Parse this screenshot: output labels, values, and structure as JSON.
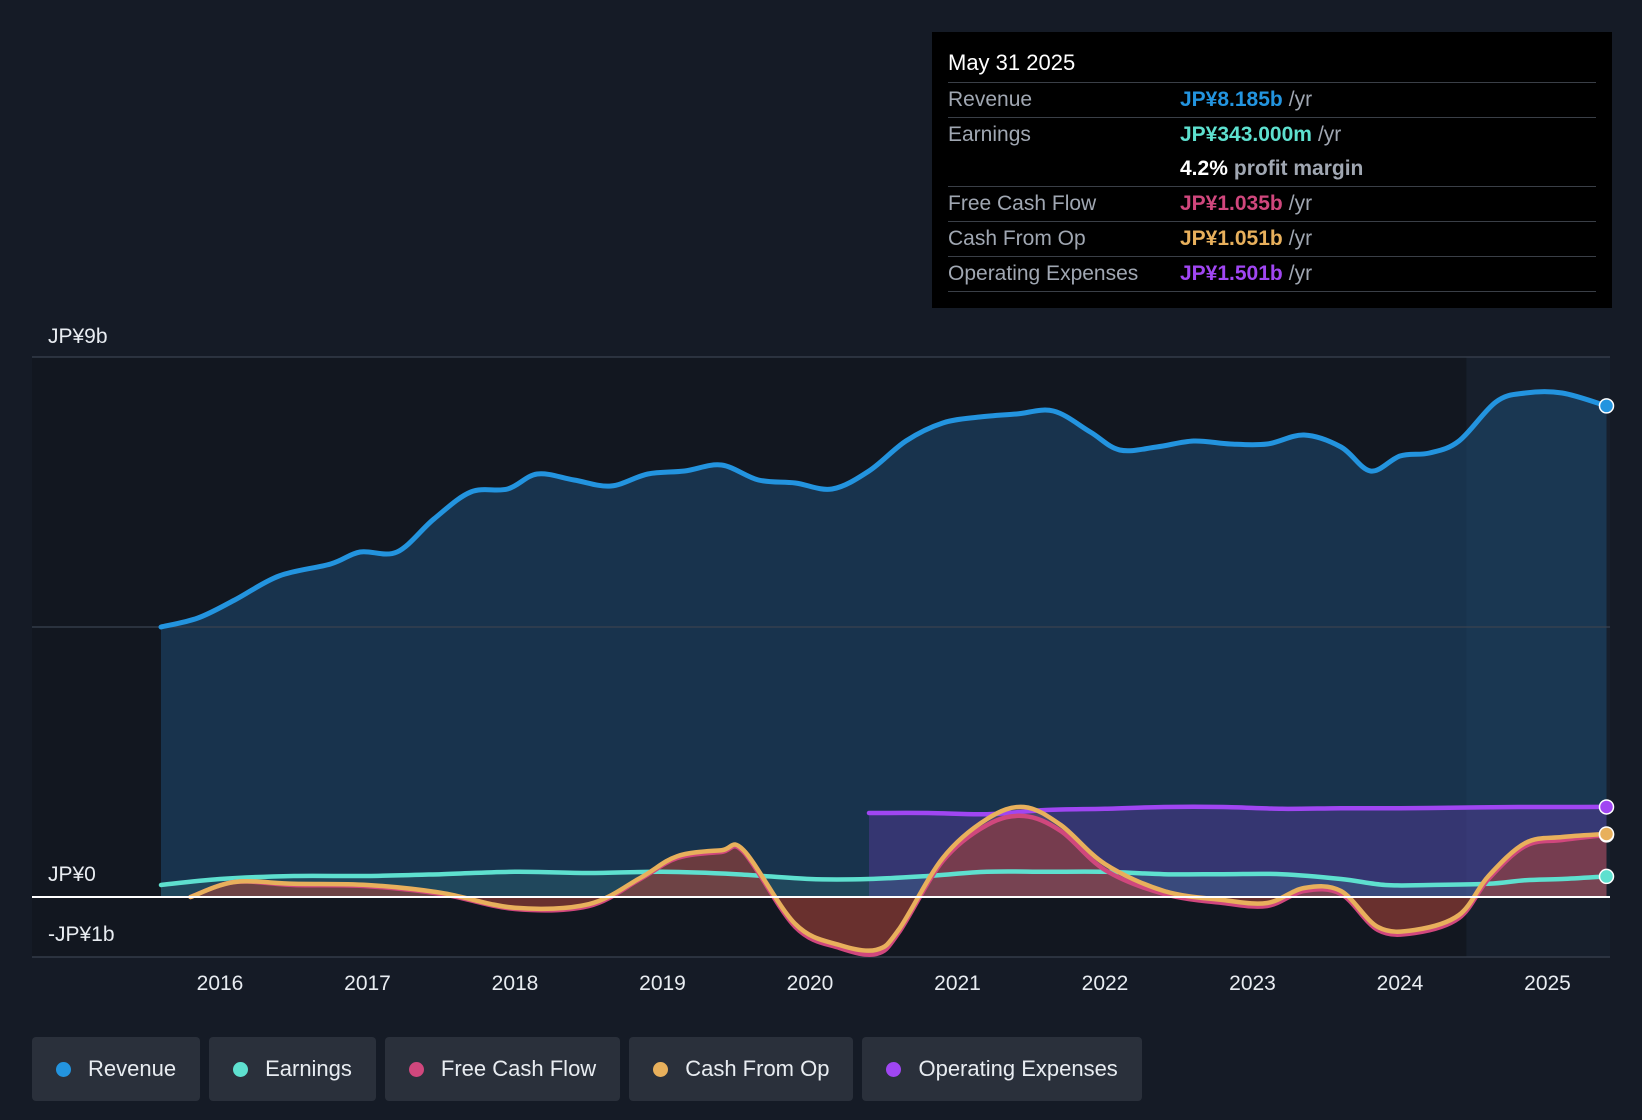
{
  "tooltip": {
    "date": "May 31 2025",
    "rows": {
      "revenue": {
        "label": "Revenue",
        "value": "JP¥8.185b",
        "unit": "/yr"
      },
      "earnings": {
        "label": "Earnings",
        "value": "JP¥343.000m",
        "unit": "/yr"
      },
      "margin": {
        "value": "4.2%",
        "text": "profit margin"
      },
      "fcf": {
        "label": "Free Cash Flow",
        "value": "JP¥1.035b",
        "unit": "/yr"
      },
      "cfo": {
        "label": "Cash From Op",
        "value": "JP¥1.051b",
        "unit": "/yr"
      },
      "opex": {
        "label": "Operating Expenses",
        "value": "JP¥1.501b",
        "unit": "/yr"
      }
    }
  },
  "legend": {
    "revenue": "Revenue",
    "earnings": "Earnings",
    "fcf": "Free Cash Flow",
    "cfo": "Cash From Op",
    "opex": "Operating Expenses"
  },
  "colors": {
    "revenue": "#2394df",
    "earnings": "#5ee0cf",
    "fcf": "#d0477d",
    "cfo": "#e8b05c",
    "opex": "#a046f2"
  },
  "chart_data": {
    "type": "line",
    "title": "",
    "xlabel": "",
    "ylabel": "",
    "ylim": [
      -1.0,
      9.0
    ],
    "y_ticks": [
      {
        "value": 9,
        "label": "JP¥9b"
      },
      {
        "value": 0,
        "label": "JP¥0"
      },
      {
        "value": -1,
        "label": "-JP¥1b"
      }
    ],
    "x_ticks": [
      2016,
      2017,
      2018,
      2019,
      2020,
      2021,
      2022,
      2023,
      2024,
      2025
    ],
    "x_range": [
      2015.0,
      2025.45
    ],
    "forecast_start": 2024.45,
    "series": [
      {
        "key": "revenue",
        "name": "Revenue",
        "x": [
          2015.6,
          2015.85,
          2016.1,
          2016.4,
          2016.75,
          2016.95,
          2017.2,
          2017.45,
          2017.7,
          2017.95,
          2018.15,
          2018.4,
          2018.65,
          2018.9,
          2019.15,
          2019.4,
          2019.65,
          2019.9,
          2020.15,
          2020.4,
          2020.65,
          2020.9,
          2021.15,
          2021.4,
          2021.65,
          2021.9,
          2022.1,
          2022.35,
          2022.6,
          2022.85,
          2023.1,
          2023.35,
          2023.6,
          2023.8,
          2024.0,
          2024.2,
          2024.4,
          2024.65,
          2024.85,
          2025.1,
          2025.4
        ],
        "y": [
          4.5,
          4.65,
          4.95,
          5.35,
          5.55,
          5.75,
          5.75,
          6.3,
          6.75,
          6.8,
          7.05,
          6.95,
          6.85,
          7.05,
          7.1,
          7.2,
          6.95,
          6.9,
          6.8,
          7.1,
          7.6,
          7.9,
          8.0,
          8.05,
          8.1,
          7.75,
          7.45,
          7.5,
          7.6,
          7.55,
          7.55,
          7.7,
          7.5,
          7.1,
          7.35,
          7.4,
          7.6,
          8.25,
          8.4,
          8.4,
          8.185
        ]
      },
      {
        "key": "earnings",
        "name": "Earnings",
        "x": [
          2015.6,
          2016.0,
          2016.5,
          2017.0,
          2017.5,
          2018.0,
          2018.5,
          2019.0,
          2019.5,
          2020.0,
          2020.4,
          2020.8,
          2021.2,
          2021.6,
          2022.0,
          2022.4,
          2022.8,
          2023.2,
          2023.6,
          2023.9,
          2024.2,
          2024.6,
          2024.85,
          2025.1,
          2025.4
        ],
        "y": [
          0.2,
          0.3,
          0.35,
          0.35,
          0.38,
          0.42,
          0.4,
          0.42,
          0.38,
          0.3,
          0.3,
          0.35,
          0.42,
          0.42,
          0.42,
          0.38,
          0.38,
          0.38,
          0.3,
          0.2,
          0.2,
          0.22,
          0.28,
          0.3,
          0.343
        ]
      },
      {
        "key": "fcf",
        "name": "Free Cash Flow",
        "x": [
          2015.8,
          2016.1,
          2016.5,
          2017.0,
          2017.5,
          2018.0,
          2018.5,
          2018.85,
          2019.1,
          2019.4,
          2019.55,
          2019.9,
          2020.2,
          2020.45,
          2020.6,
          2020.9,
          2021.2,
          2021.45,
          2021.7,
          2022.0,
          2022.4,
          2022.8,
          2023.1,
          2023.35,
          2023.6,
          2023.85,
          2024.1,
          2024.4,
          2024.6,
          2024.85,
          2025.1,
          2025.4
        ],
        "y": [
          0.0,
          0.25,
          0.2,
          0.18,
          0.05,
          -0.2,
          -0.15,
          0.3,
          0.65,
          0.75,
          0.75,
          -0.5,
          -0.85,
          -0.95,
          -0.6,
          0.6,
          1.2,
          1.35,
          1.1,
          0.45,
          0.05,
          -0.1,
          -0.15,
          0.1,
          0.05,
          -0.55,
          -0.6,
          -0.35,
          0.3,
          0.85,
          0.95,
          1.035
        ]
      },
      {
        "key": "cfo",
        "name": "Cash From Op",
        "x": [
          2015.8,
          2016.1,
          2016.5,
          2017.0,
          2017.5,
          2018.0,
          2018.5,
          2018.85,
          2019.1,
          2019.4,
          2019.55,
          2019.9,
          2020.2,
          2020.45,
          2020.6,
          2020.9,
          2021.2,
          2021.45,
          2021.7,
          2022.0,
          2022.4,
          2022.8,
          2023.1,
          2023.35,
          2023.6,
          2023.85,
          2024.1,
          2024.4,
          2024.6,
          2024.85,
          2025.1,
          2025.4
        ],
        "y": [
          0.0,
          0.25,
          0.22,
          0.2,
          0.07,
          -0.18,
          -0.12,
          0.32,
          0.68,
          0.78,
          0.78,
          -0.45,
          -0.8,
          -0.88,
          -0.55,
          0.65,
          1.3,
          1.5,
          1.2,
          0.55,
          0.1,
          -0.05,
          -0.1,
          0.15,
          0.1,
          -0.5,
          -0.55,
          -0.3,
          0.35,
          0.9,
          1.0,
          1.051
        ]
      },
      {
        "key": "opex",
        "name": "Operating Expenses",
        "x": [
          2020.4,
          2020.8,
          2021.2,
          2021.6,
          2022.0,
          2022.4,
          2022.8,
          2023.2,
          2023.6,
          2024.0,
          2024.4,
          2024.8,
          2025.1,
          2025.4
        ],
        "y": [
          1.4,
          1.4,
          1.38,
          1.45,
          1.47,
          1.5,
          1.5,
          1.47,
          1.48,
          1.48,
          1.49,
          1.5,
          1.5,
          1.501
        ]
      }
    ]
  }
}
